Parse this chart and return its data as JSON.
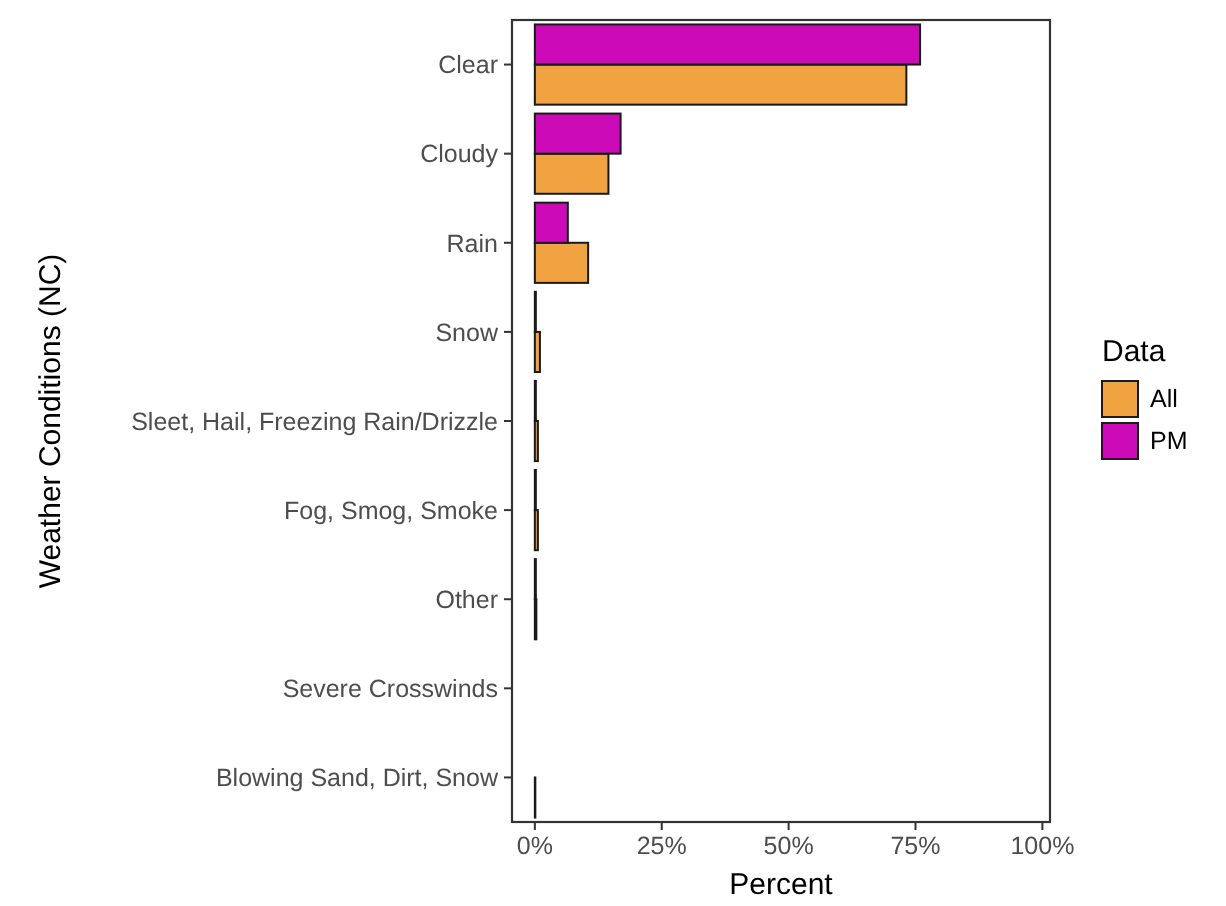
{
  "chart_data": {
    "type": "bar",
    "orientation": "horizontal",
    "xlabel": "Percent",
    "ylabel": "Weather Conditions (NC)",
    "legend_title": "Data",
    "legend": "right",
    "grid": false,
    "categories": [
      "Clear",
      "Cloudy",
      "Rain",
      "Snow",
      "Sleet, Hail, Freezing Rain/Drizzle",
      "Fog, Smog, Smoke",
      "Other",
      "Severe Crosswinds",
      "Blowing Sand, Dirt, Snow"
    ],
    "series": [
      {
        "name": "All",
        "color": "#f2a341",
        "values": [
          73.2,
          14.5,
          10.5,
          1.0,
          0.6,
          0.6,
          0.3,
          null,
          0.1
        ]
      },
      {
        "name": "PM",
        "color": "#cc0ab8",
        "values": [
          75.9,
          16.9,
          6.5,
          0.2,
          0.2,
          0.2,
          0.2,
          null,
          null
        ]
      }
    ],
    "xlim": [
      -4.5,
      101.5
    ],
    "xticks": [
      {
        "value": 0,
        "label": "0%"
      },
      {
        "value": 25,
        "label": "25%"
      },
      {
        "value": 50,
        "label": "50%"
      },
      {
        "value": 75,
        "label": "75%"
      },
      {
        "value": 100,
        "label": "100%"
      }
    ]
  }
}
